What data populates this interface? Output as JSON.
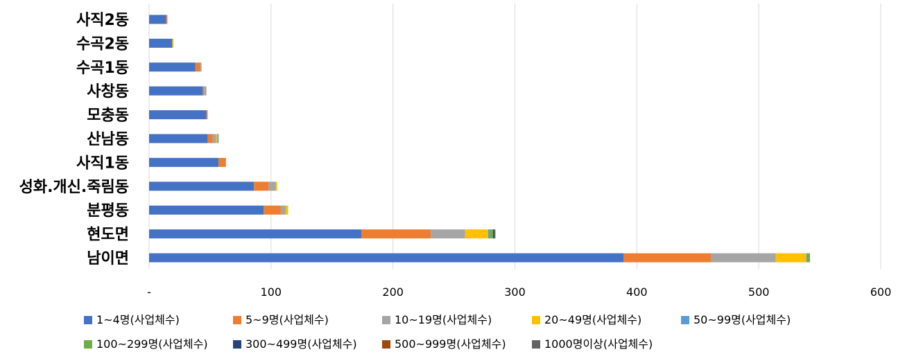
{
  "chart_data": {
    "type": "bar",
    "orientation": "horizontal",
    "stacked": true,
    "categories": [
      "사직2동",
      "수곡2동",
      "수곡1동",
      "사창동",
      "모충동",
      "산남동",
      "사직1동",
      "성화.개신.죽림동",
      "분평동",
      "현도면",
      "남이면"
    ],
    "xlim": [
      0,
      600
    ],
    "x_ticks": [
      "-",
      "100",
      "200",
      "300",
      "400",
      "500",
      "600"
    ],
    "grid": "vertical",
    "legend_position": "bottom",
    "series": [
      {
        "name": "1~4명(사업체수)",
        "color": "#4472C4",
        "values": [
          14,
          19,
          38,
          44,
          47,
          48,
          57,
          86,
          94,
          174,
          389
        ]
      },
      {
        "name": "5~9명(사업체수)",
        "color": "#ED7D31",
        "values": [
          1,
          0,
          4,
          1,
          1,
          4,
          6,
          12,
          14,
          57,
          72
        ]
      },
      {
        "name": "10~19명(사업체수)",
        "color": "#A5A5A5",
        "values": [
          0,
          0,
          1,
          2,
          0,
          3,
          0,
          6,
          4,
          28,
          53
        ]
      },
      {
        "name": "20~49명(사업체수)",
        "color": "#FFC000",
        "values": [
          0,
          1,
          0,
          0,
          0,
          1,
          0,
          1,
          2,
          19,
          25
        ]
      },
      {
        "name": "50~99명(사업체수)",
        "color": "#5B9BD5",
        "values": [
          0,
          0,
          0,
          0,
          0,
          1,
          0,
          0,
          0,
          1,
          1
        ]
      },
      {
        "name": "100~299명(사업체수)",
        "color": "#70AD47",
        "values": [
          0,
          0,
          0,
          0,
          0,
          0,
          0,
          0,
          0,
          3,
          2
        ]
      },
      {
        "name": "300~499명(사업체수)",
        "color": "#264478",
        "values": [
          0,
          0,
          0,
          0,
          0,
          0,
          0,
          0,
          0,
          1,
          0
        ]
      },
      {
        "name": "500~999명(사업체수)",
        "color": "#9E480E",
        "values": [
          0,
          0,
          0,
          0,
          0,
          0,
          0,
          0,
          0,
          0,
          0
        ]
      },
      {
        "name": "1000명이상(사업체수)",
        "color": "#636363",
        "values": [
          0,
          0,
          0,
          0,
          0,
          0,
          0,
          0,
          0,
          1,
          0
        ]
      }
    ]
  }
}
